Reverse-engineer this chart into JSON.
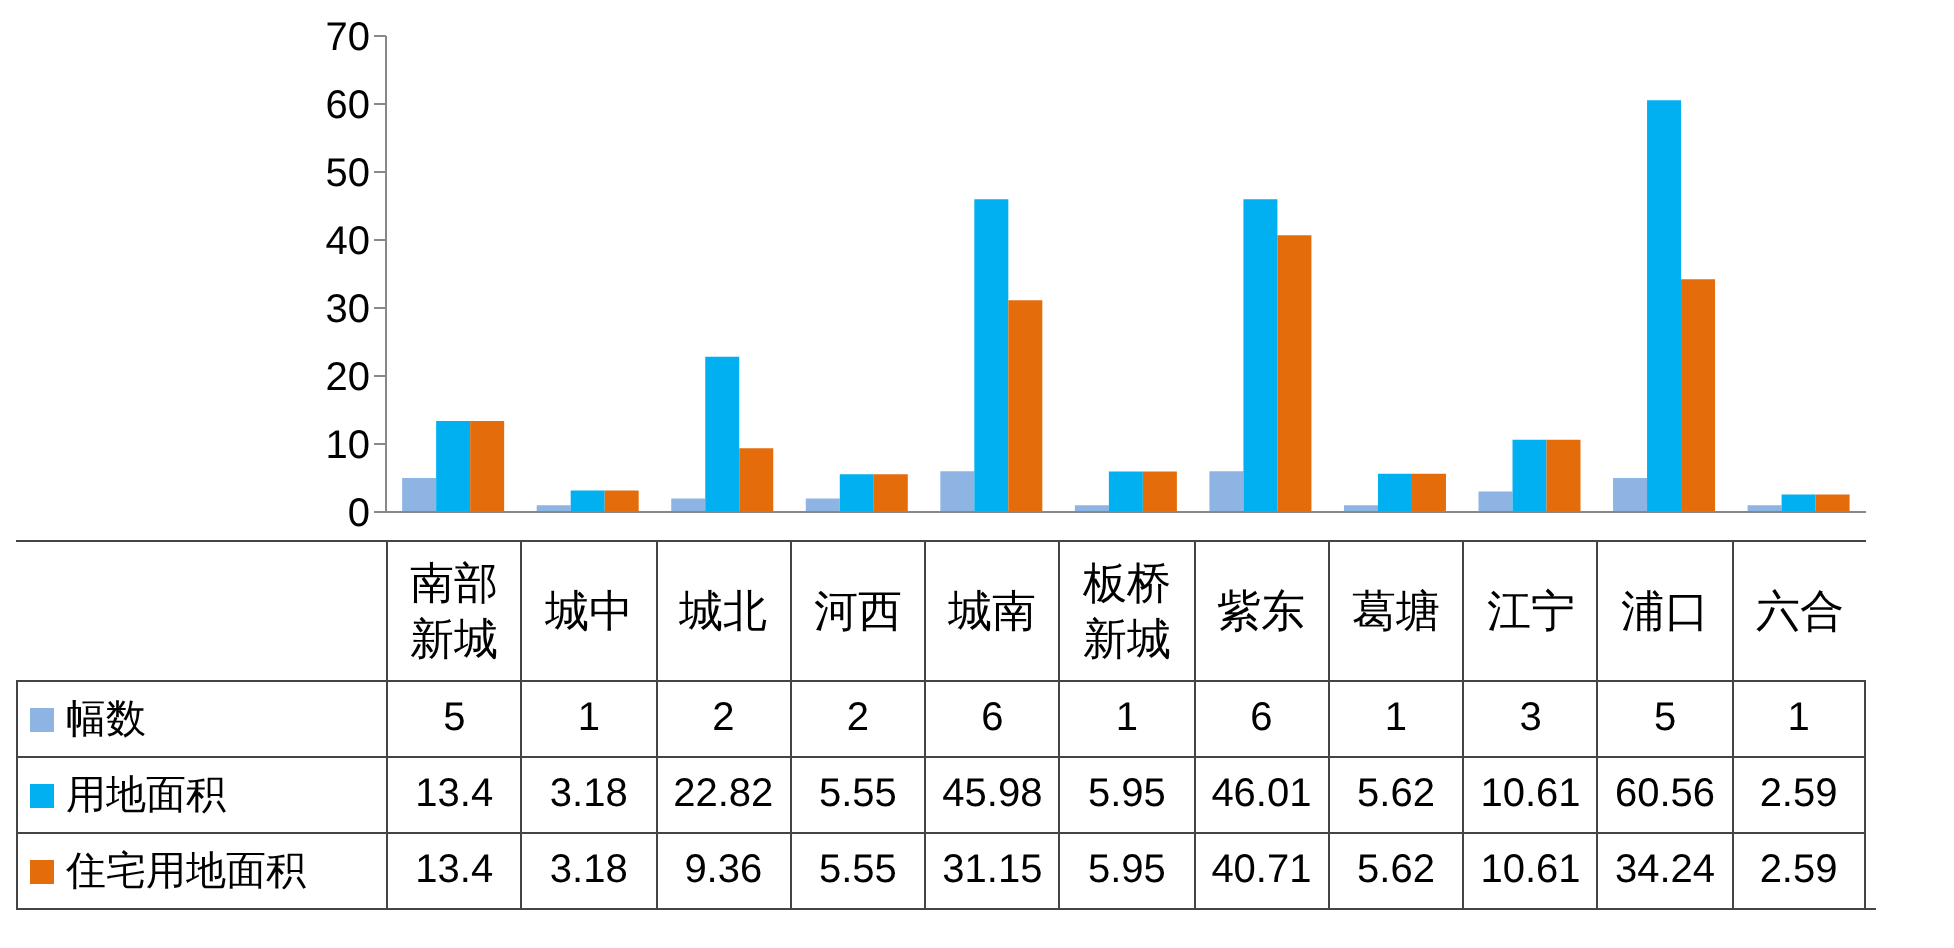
{
  "chart_data": {
    "type": "bar",
    "categories": [
      "南部新城",
      "城中",
      "城北",
      "河西",
      "城南",
      "板桥新城",
      "紫东",
      "葛塘",
      "江宁",
      "浦口",
      "六合"
    ],
    "series": [
      {
        "name": "幅数",
        "color": "#8db4e2",
        "values": [
          5,
          1,
          2,
          2,
          6,
          1,
          6,
          1,
          3,
          5,
          1
        ]
      },
      {
        "name": "用地面积",
        "color": "#00b0f0",
        "values": [
          13.4,
          3.18,
          22.82,
          5.55,
          45.98,
          5.95,
          46.01,
          5.62,
          10.61,
          60.56,
          2.59
        ]
      },
      {
        "name": "住宅用地面积",
        "color": "#e46c0a",
        "values": [
          13.4,
          3.18,
          9.36,
          5.55,
          31.15,
          5.95,
          40.71,
          5.62,
          10.61,
          34.24,
          2.59
        ]
      }
    ],
    "ylim": [
      0,
      70
    ],
    "yticks": [
      0,
      10,
      20,
      30,
      40,
      50,
      60,
      70
    ],
    "grid": false,
    "legend": "bottom left",
    "data_labels": true
  }
}
